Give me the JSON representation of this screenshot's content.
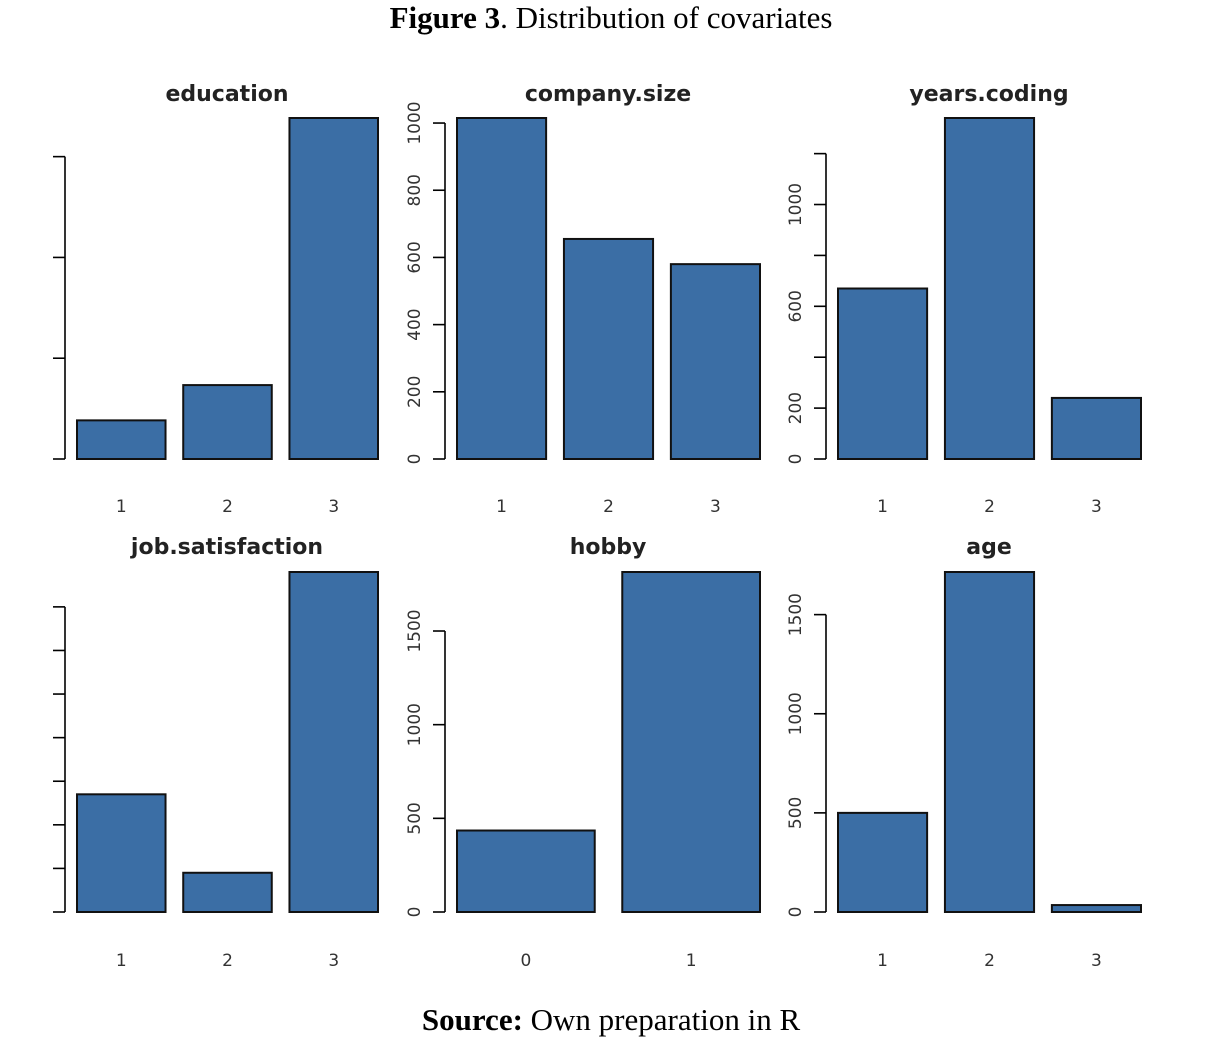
{
  "figure": {
    "title_bold": "Figure 3",
    "title_rest": ". Distribution of covariates",
    "source_bold": "Source:",
    "source_rest": " Own preparation in R"
  },
  "colors": {
    "bar_fill": "#3b6ea5",
    "bar_stroke": "#111111",
    "axis": "#000000"
  },
  "chart_data": [
    {
      "type": "bar",
      "title": "education",
      "categories": [
        "1",
        "2",
        "3"
      ],
      "values": [
        115,
        220,
        1015
      ],
      "ylim": [
        0,
        1015
      ],
      "yticks": [
        0,
        300,
        600,
        900
      ],
      "ytick_labels": [
        "",
        "",
        "",
        ""
      ]
    },
    {
      "type": "bar",
      "title": "company.size",
      "categories": [
        "1",
        "2",
        "3"
      ],
      "values": [
        1015,
        655,
        580
      ],
      "ylim": [
        0,
        1015
      ],
      "yticks": [
        0,
        200,
        400,
        600,
        800,
        1000
      ],
      "ytick_labels": [
        "0",
        "200",
        "400",
        "600",
        "800",
        "1000"
      ]
    },
    {
      "type": "bar",
      "title": "years.coding",
      "categories": [
        "1",
        "2",
        "3"
      ],
      "values": [
        670,
        1340,
        240
      ],
      "ylim": [
        0,
        1340
      ],
      "yticks": [
        0,
        200,
        400,
        600,
        800,
        1000,
        1200
      ],
      "ytick_labels": [
        "0",
        "200",
        "",
        "600",
        "",
        "1000",
        ""
      ]
    },
    {
      "type": "bar",
      "title": "job.satisfaction",
      "categories": [
        "1",
        "2",
        "3"
      ],
      "values": [
        270,
        90,
        780
      ],
      "ylim": [
        0,
        780
      ],
      "yticks": [
        0,
        100,
        200,
        300,
        400,
        500,
        600,
        700
      ],
      "ytick_labels": [
        "",
        "",
        "",
        "",
        "",
        "",
        "",
        ""
      ]
    },
    {
      "type": "bar",
      "title": "hobby",
      "categories": [
        "0",
        "1"
      ],
      "values": [
        435,
        1815
      ],
      "ylim": [
        0,
        1815
      ],
      "yticks": [
        0,
        500,
        1000,
        1500
      ],
      "ytick_labels": [
        "0",
        "500",
        "1000",
        "1500"
      ]
    },
    {
      "type": "bar",
      "title": "age",
      "categories": [
        "1",
        "2",
        "3"
      ],
      "values": [
        500,
        1715,
        35
      ],
      "ylim": [
        0,
        1715
      ],
      "yticks": [
        0,
        500,
        1000,
        1500
      ],
      "ytick_labels": [
        "0",
        "500",
        "1000",
        "1500"
      ]
    }
  ]
}
